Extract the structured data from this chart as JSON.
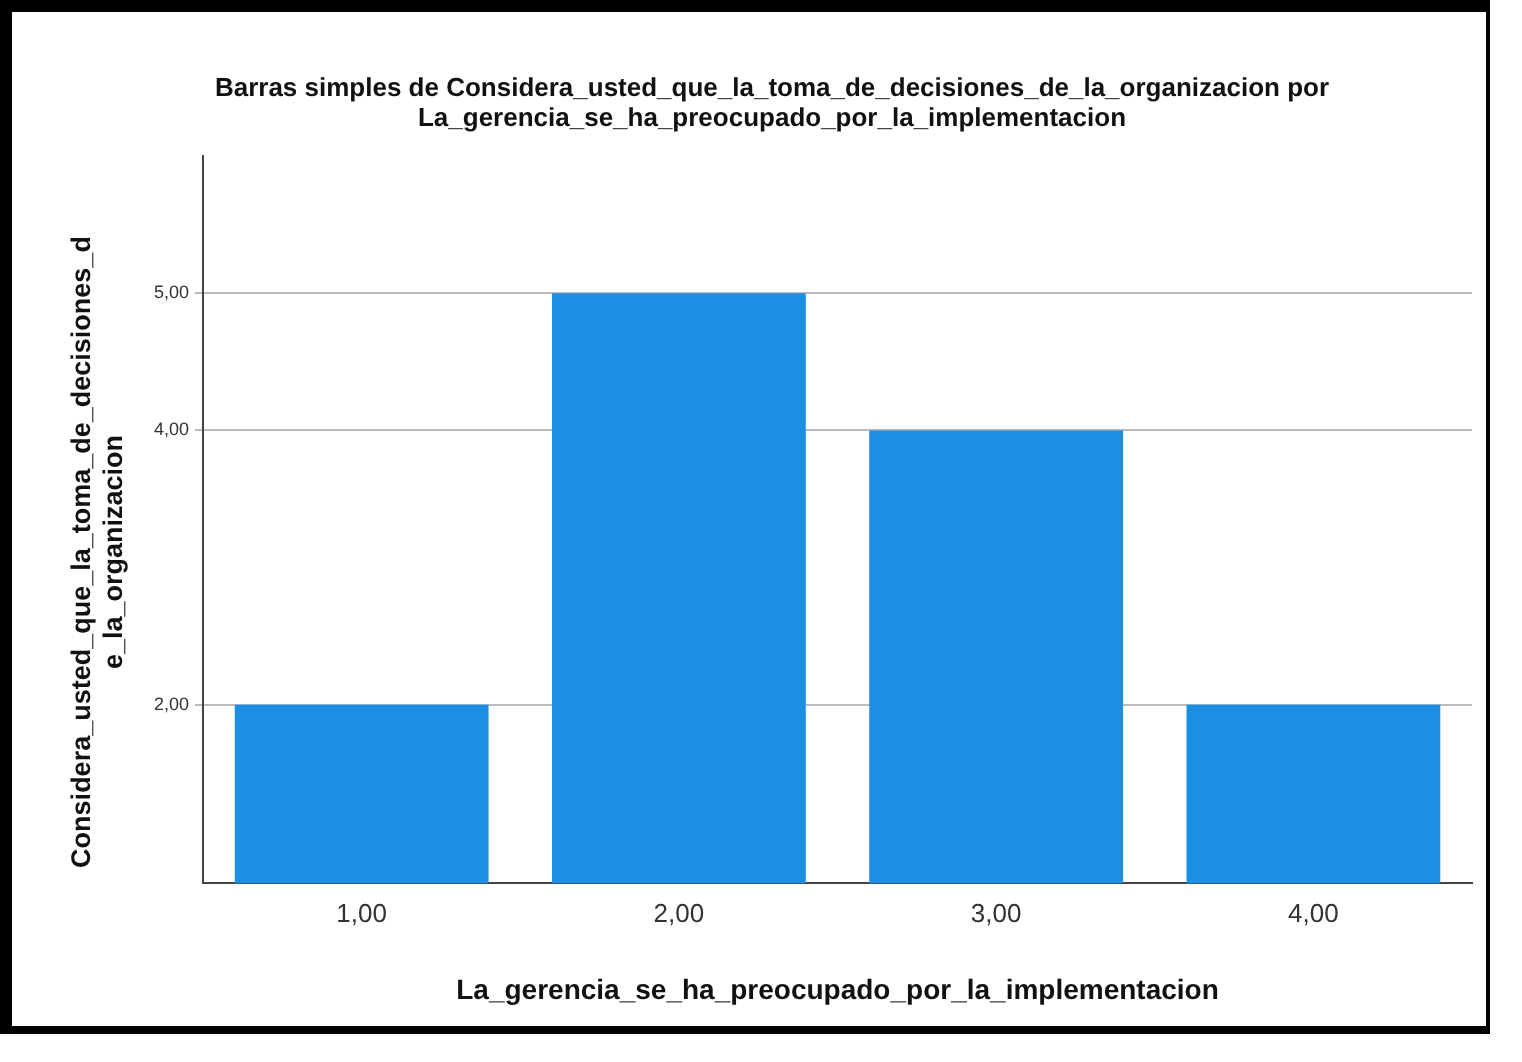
{
  "chart_data": {
    "type": "bar",
    "title": "Barras simples de Considera_usted_que_la_toma_de_decisiones_de_la_organizacion por La_gerencia_se_ha_preocupado_por_la_implementacion",
    "xlabel": "La_gerencia_se_ha_preocupado_por_la_implementacion",
    "ylabel": "Considera_usted_que_la_toma_de_decisiones_de_la_organizacion",
    "categories": [
      "1,00",
      "2,00",
      "3,00",
      "4,00"
    ],
    "values": [
      2,
      5,
      4,
      2
    ],
    "color": "#1a8fe3",
    "ylim": [
      0.7,
      6
    ],
    "yticks": [
      {
        "value": 2,
        "label": "2,00"
      },
      {
        "value": 4,
        "label": "4,00"
      },
      {
        "value": 5,
        "label": "5,00"
      }
    ],
    "grid": "y",
    "legend": false
  }
}
